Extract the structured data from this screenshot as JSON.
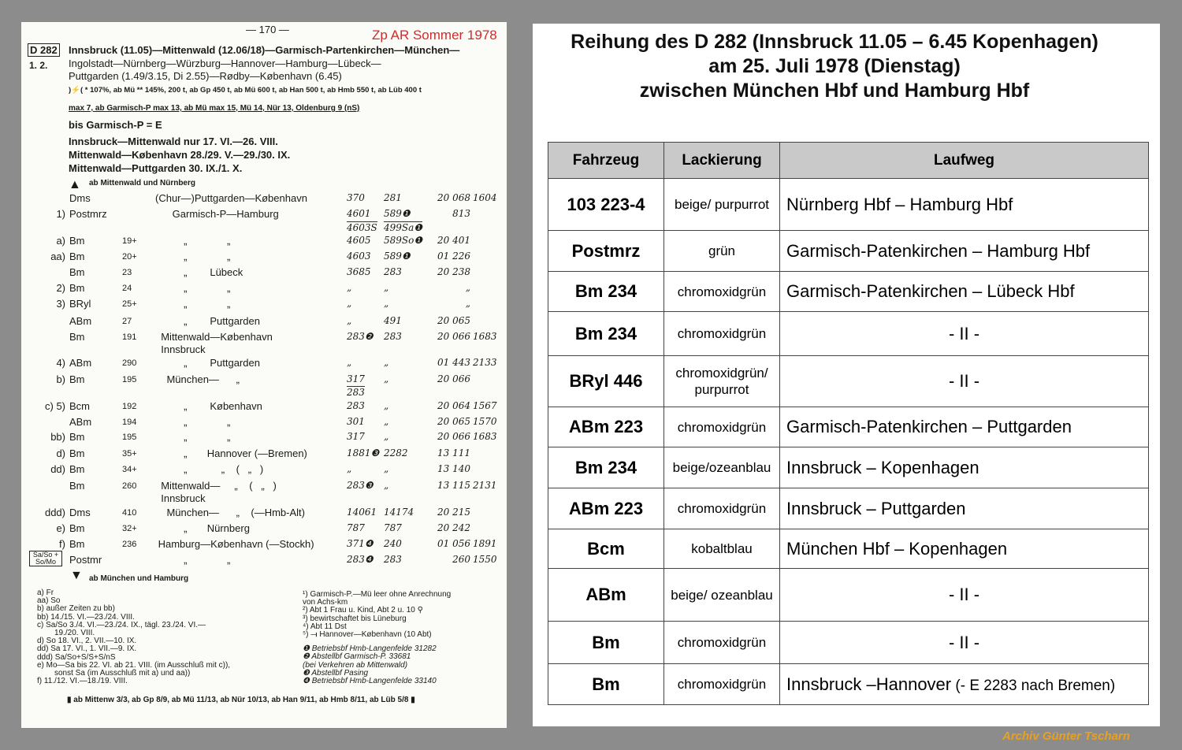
{
  "left_page": {
    "page_number": "— 170 —",
    "stamp": "Zp AR  Sommer 1978",
    "train": "D 282",
    "classes": "1. 2.",
    "route_lines": [
      "Innsbruck (11.05)—Mittenwald (12.06/18)—Garmisch-Partenkirchen—München—",
      "Ingolstadt—Nürnberg—Würzburg—Hannover—Hamburg—Lübeck—",
      "Puttgarden (1.49/3.15, Di 2.55)—Rødby—København (6.45)"
    ],
    "load_line": ")⚡( * 107%, ab Mü  ** 145%, 200 t, ab Gp 450 t, ab Mü 600 t, ab Han 500 t, ab Hmb 550 t, ab Lüb 400 t",
    "max_line": "max 7, ab Garmisch-P max 13, ab Mü max 15, Mü 14, Nür 13, Oldenburg 9 (nS)",
    "notes": [
      "bis Garmisch-P = E",
      "Innsbruck—Mittenwald nur 17. VI.—26. VIII.",
      "Mittenwald—København 28./29. V.—29./30. IX.",
      "Mittenwald—Puttgarden 30. IX./1. X."
    ],
    "arrow_up_label": "ab Mittenwald und Nürnberg",
    "rows": [
      {
        "mark": "",
        "type": "Dms",
        "num": "",
        "route": "(Chur—)Puttgarden—København",
        "n1": "370",
        "n2": "281",
        "n3": "20 068",
        "n4": "1604"
      },
      {
        "mark": "1)",
        "type": "Postmrz",
        "num": "",
        "route": "      Garmisch-P—Hamburg",
        "n1": "4601",
        "n2": "589❶",
        "n3": "813",
        "n4": ""
      },
      {
        "mark": "",
        "type": "",
        "num": "",
        "route": "",
        "n1": "4603S",
        "n2": "499Sa❶",
        "n3": "",
        "n4": ""
      },
      {
        "mark": "a)",
        "type": "Bm",
        "num": "19+",
        "route": "          „              „",
        "n1": "4605",
        "n2": "589So❶",
        "n3": "20 401",
        "n4": ""
      },
      {
        "mark": "aa)",
        "type": "Bm",
        "num": "20+",
        "route": "          „              „",
        "n1": "4603",
        "n2": "589❶",
        "n3": "01 226",
        "n4": ""
      },
      {
        "mark": "",
        "type": "Bm",
        "num": "23",
        "route": "          „        Lübeck",
        "n1": "3685",
        "n2": "283",
        "n3": "20 238",
        "n4": ""
      },
      {
        "mark": "2)",
        "type": "Bm",
        "num": "24",
        "route": "          „              „",
        "n1": "„",
        "n2": "„",
        "n3": "„",
        "n4": ""
      },
      {
        "mark": "3)",
        "type": "BRyl",
        "num": "25+",
        "route": "          „              „",
        "n1": "„",
        "n2": "„",
        "n3": "„",
        "n4": ""
      },
      {
        "mark": "",
        "type": "ABm",
        "num": "27",
        "route": "          „        Puttgarden",
        "n1": "„",
        "n2": "491",
        "n3": "20 065",
        "n4": ""
      },
      {
        "mark": "",
        "type": "Bm",
        "num": "191",
        "route": "  Mittenwald—København",
        "n1": "283❷",
        "n2": "283",
        "n3": "20 066",
        "n4": "1683"
      },
      {
        "mark": "",
        "type": "",
        "num": "",
        "route": "  Innsbruck",
        "n1": "",
        "n2": "",
        "n3": "",
        "n4": ""
      },
      {
        "mark": "4)",
        "type": "ABm",
        "num": "290",
        "route": "          „        Puttgarden",
        "n1": "„",
        "n2": "„",
        "n3": "01 443",
        "n4": "2133"
      },
      {
        "mark": "b)",
        "type": "Bm",
        "num": "195",
        "route": "    München—      „",
        "n1": "317",
        "n2": "„",
        "n3": "20 066",
        "n4": ""
      },
      {
        "mark": "",
        "type": "",
        "num": "",
        "route": "",
        "n1": "283",
        "n2": "",
        "n3": "",
        "n4": ""
      },
      {
        "mark": "c) 5)",
        "type": "Bcm",
        "num": "192",
        "route": "          „        København",
        "n1": "283",
        "n2": "„",
        "n3": "20 064",
        "n4": "1567"
      },
      {
        "mark": "",
        "type": "ABm",
        "num": "194",
        "route": "          „              „",
        "n1": "301",
        "n2": "„",
        "n3": "20 065",
        "n4": "1570"
      },
      {
        "mark": "bb)",
        "type": "Bm",
        "num": "195",
        "route": "          „              „",
        "n1": "317",
        "n2": "„",
        "n3": "20 066",
        "n4": "1683"
      },
      {
        "mark": "d)",
        "type": "Bm",
        "num": "35+",
        "route": "          „       Hannover (—Bremen)",
        "n1": "1881❸",
        "n2": "2282",
        "n3": "13 111",
        "n4": ""
      },
      {
        "mark": "dd)",
        "type": "Bm",
        "num": "34+",
        "route": "          „            „    (   „   )",
        "n1": "„",
        "n2": "„",
        "n3": "13 140",
        "n4": ""
      },
      {
        "mark": "",
        "type": "Bm",
        "num": "260",
        "route": "  Mittenwald—     „    (   „   )",
        "n1": "283❸",
        "n2": "„",
        "n3": "13 115",
        "n4": "2131"
      },
      {
        "mark": "",
        "type": "",
        "num": "",
        "route": "  Innsbruck",
        "n1": "",
        "n2": "",
        "n3": "",
        "n4": ""
      },
      {
        "mark": "ddd)",
        "type": "Dms",
        "num": "410",
        "route": "    München—      „    (—Hmb-Alt)",
        "n1": "14061",
        "n2": "14174",
        "n3": "20 215",
        "n4": ""
      },
      {
        "mark": "e)",
        "type": "Bm",
        "num": "32+",
        "route": "          „       Nürnberg",
        "n1": "787",
        "n2": "787",
        "n3": "20 242",
        "n4": ""
      },
      {
        "mark": "f)",
        "type": "Bm",
        "num": "236",
        "route": " Hamburg—København (—Stockh)",
        "n1": "371❹",
        "n2": "240",
        "n3": "01 056",
        "n4": "1891"
      },
      {
        "mark": "Sa/So + So/Mo",
        "type": "Postmr",
        "num": "",
        "route": "          „              „",
        "n1": "283❹",
        "n2": "283",
        "n3": "260",
        "n4": "1550"
      }
    ],
    "arrow_down_label": "ab München und Hamburg",
    "footnotes_left": [
      "a) Fr",
      "aa) So",
      "b) außer Zeiten zu bb)",
      "bb) 14./15. VI.—23./24. VIII.",
      "c) Sa/So 3./4. VI.—23./24. IX., tägl. 23./24. VI.—",
      "19./20. VIII.",
      "d) So 18. VI., 2. VII.—10. IX.",
      "dd) Sa 17. VI., 1. VII.—9. IX.",
      "ddd) Sa/So+S/S+S/nS",
      "e) Mo—Sa bis 22. VI. ab 21. VIII. (im Ausschluß mit c)),",
      "sonst Sa (im Ausschluß mit a) und aa))",
      "f) 11./12. VI.—18./19. VIII."
    ],
    "footnotes_right": [
      "¹) Garmisch-P.—Mü leer ohne Anrechnung",
      "von Achs-km",
      "²) Abt 1 Frau u. Kind, Abt 2 u. 10 ⚲",
      "³) bewirtschaftet bis Lüneburg",
      "⁴) Abt 11 Dst",
      "⁵) ⟞ Hannover—København (10 Abt)",
      "",
      "❶ Betriebsbf Hmb-Langenfelde 31282",
      "❷ Abstellbf Garmisch-P. 33681",
      "(bei Verkehren ab Mittenwald)",
      "❸ Abstellbf Pasing",
      "❹ Betriebsbf Hmb-Langenfelde 33140"
    ],
    "bottom_line": "▮ ab Mittenw 3/3, ab Gp 8/9, ab Mü 11/13, ab Nür 10/13, ab Han 9/11, ab Hmb 8/11, ab Lüb 5/8 ▮"
  },
  "right_page": {
    "title_lines": [
      "Reihung des D 282 (Innsbruck 11.05 – 6.45 Kopenhagen)",
      "am 25. Juli 1978 (Dienstag)",
      "zwischen München Hbf und Hamburg Hbf"
    ],
    "headers": [
      "Fahrzeug",
      "Lackierung",
      "Laufweg"
    ],
    "rows": [
      {
        "fahrzeug": "103 223-4",
        "lackierung": "beige/ purpurrot",
        "laufweg": "Nürnberg Hbf – Hamburg Hbf",
        "note": ""
      },
      {
        "fahrzeug": "Postmrz",
        "lackierung": "grün",
        "laufweg": "Garmisch-Patenkirchen – Hamburg Hbf",
        "note": ""
      },
      {
        "fahrzeug": "Bm 234",
        "lackierung": "chromoxidgrün",
        "laufweg": "Garmisch-Patenkirchen – Lübeck Hbf",
        "note": ""
      },
      {
        "fahrzeug": "Bm 234",
        "lackierung": "chromoxidgrün",
        "laufweg": "- II -",
        "note": ""
      },
      {
        "fahrzeug": "BRyl 446",
        "lackierung": "chromoxidgrün/ purpurrot",
        "laufweg": "- II -",
        "note": ""
      },
      {
        "fahrzeug": "ABm 223",
        "lackierung": "chromoxidgrün",
        "laufweg": "Garmisch-Patenkirchen – Puttgarden",
        "note": ""
      },
      {
        "fahrzeug": "Bm 234",
        "lackierung": "beige/ozeanblau",
        "laufweg": "Innsbruck – Kopenhagen",
        "note": ""
      },
      {
        "fahrzeug": "ABm 223",
        "lackierung": "chromoxidgrün",
        "laufweg": "Innsbruck – Puttgarden",
        "note": ""
      },
      {
        "fahrzeug": "Bcm",
        "lackierung": "kobaltblau",
        "laufweg": "München Hbf – Kopenhagen",
        "note": ""
      },
      {
        "fahrzeug": "ABm",
        "lackierung": "beige/ ozeanblau",
        "laufweg": "- II -",
        "note": ""
      },
      {
        "fahrzeug": "Bm",
        "lackierung": "chromoxidgrün",
        "laufweg": "- II -",
        "note": ""
      },
      {
        "fahrzeug": "Bm",
        "lackierung": "chromoxidgrün",
        "laufweg": "Innsbruck –Hannover",
        "note": " (- E 2283 nach Bremen)"
      }
    ]
  },
  "credit": "Archiv  Günter Tscharn",
  "colors": {
    "background": "#8c8c8c",
    "stamp": "#d42a2a",
    "header_fill": "#c9c9c9",
    "credit": "#e8a020"
  }
}
